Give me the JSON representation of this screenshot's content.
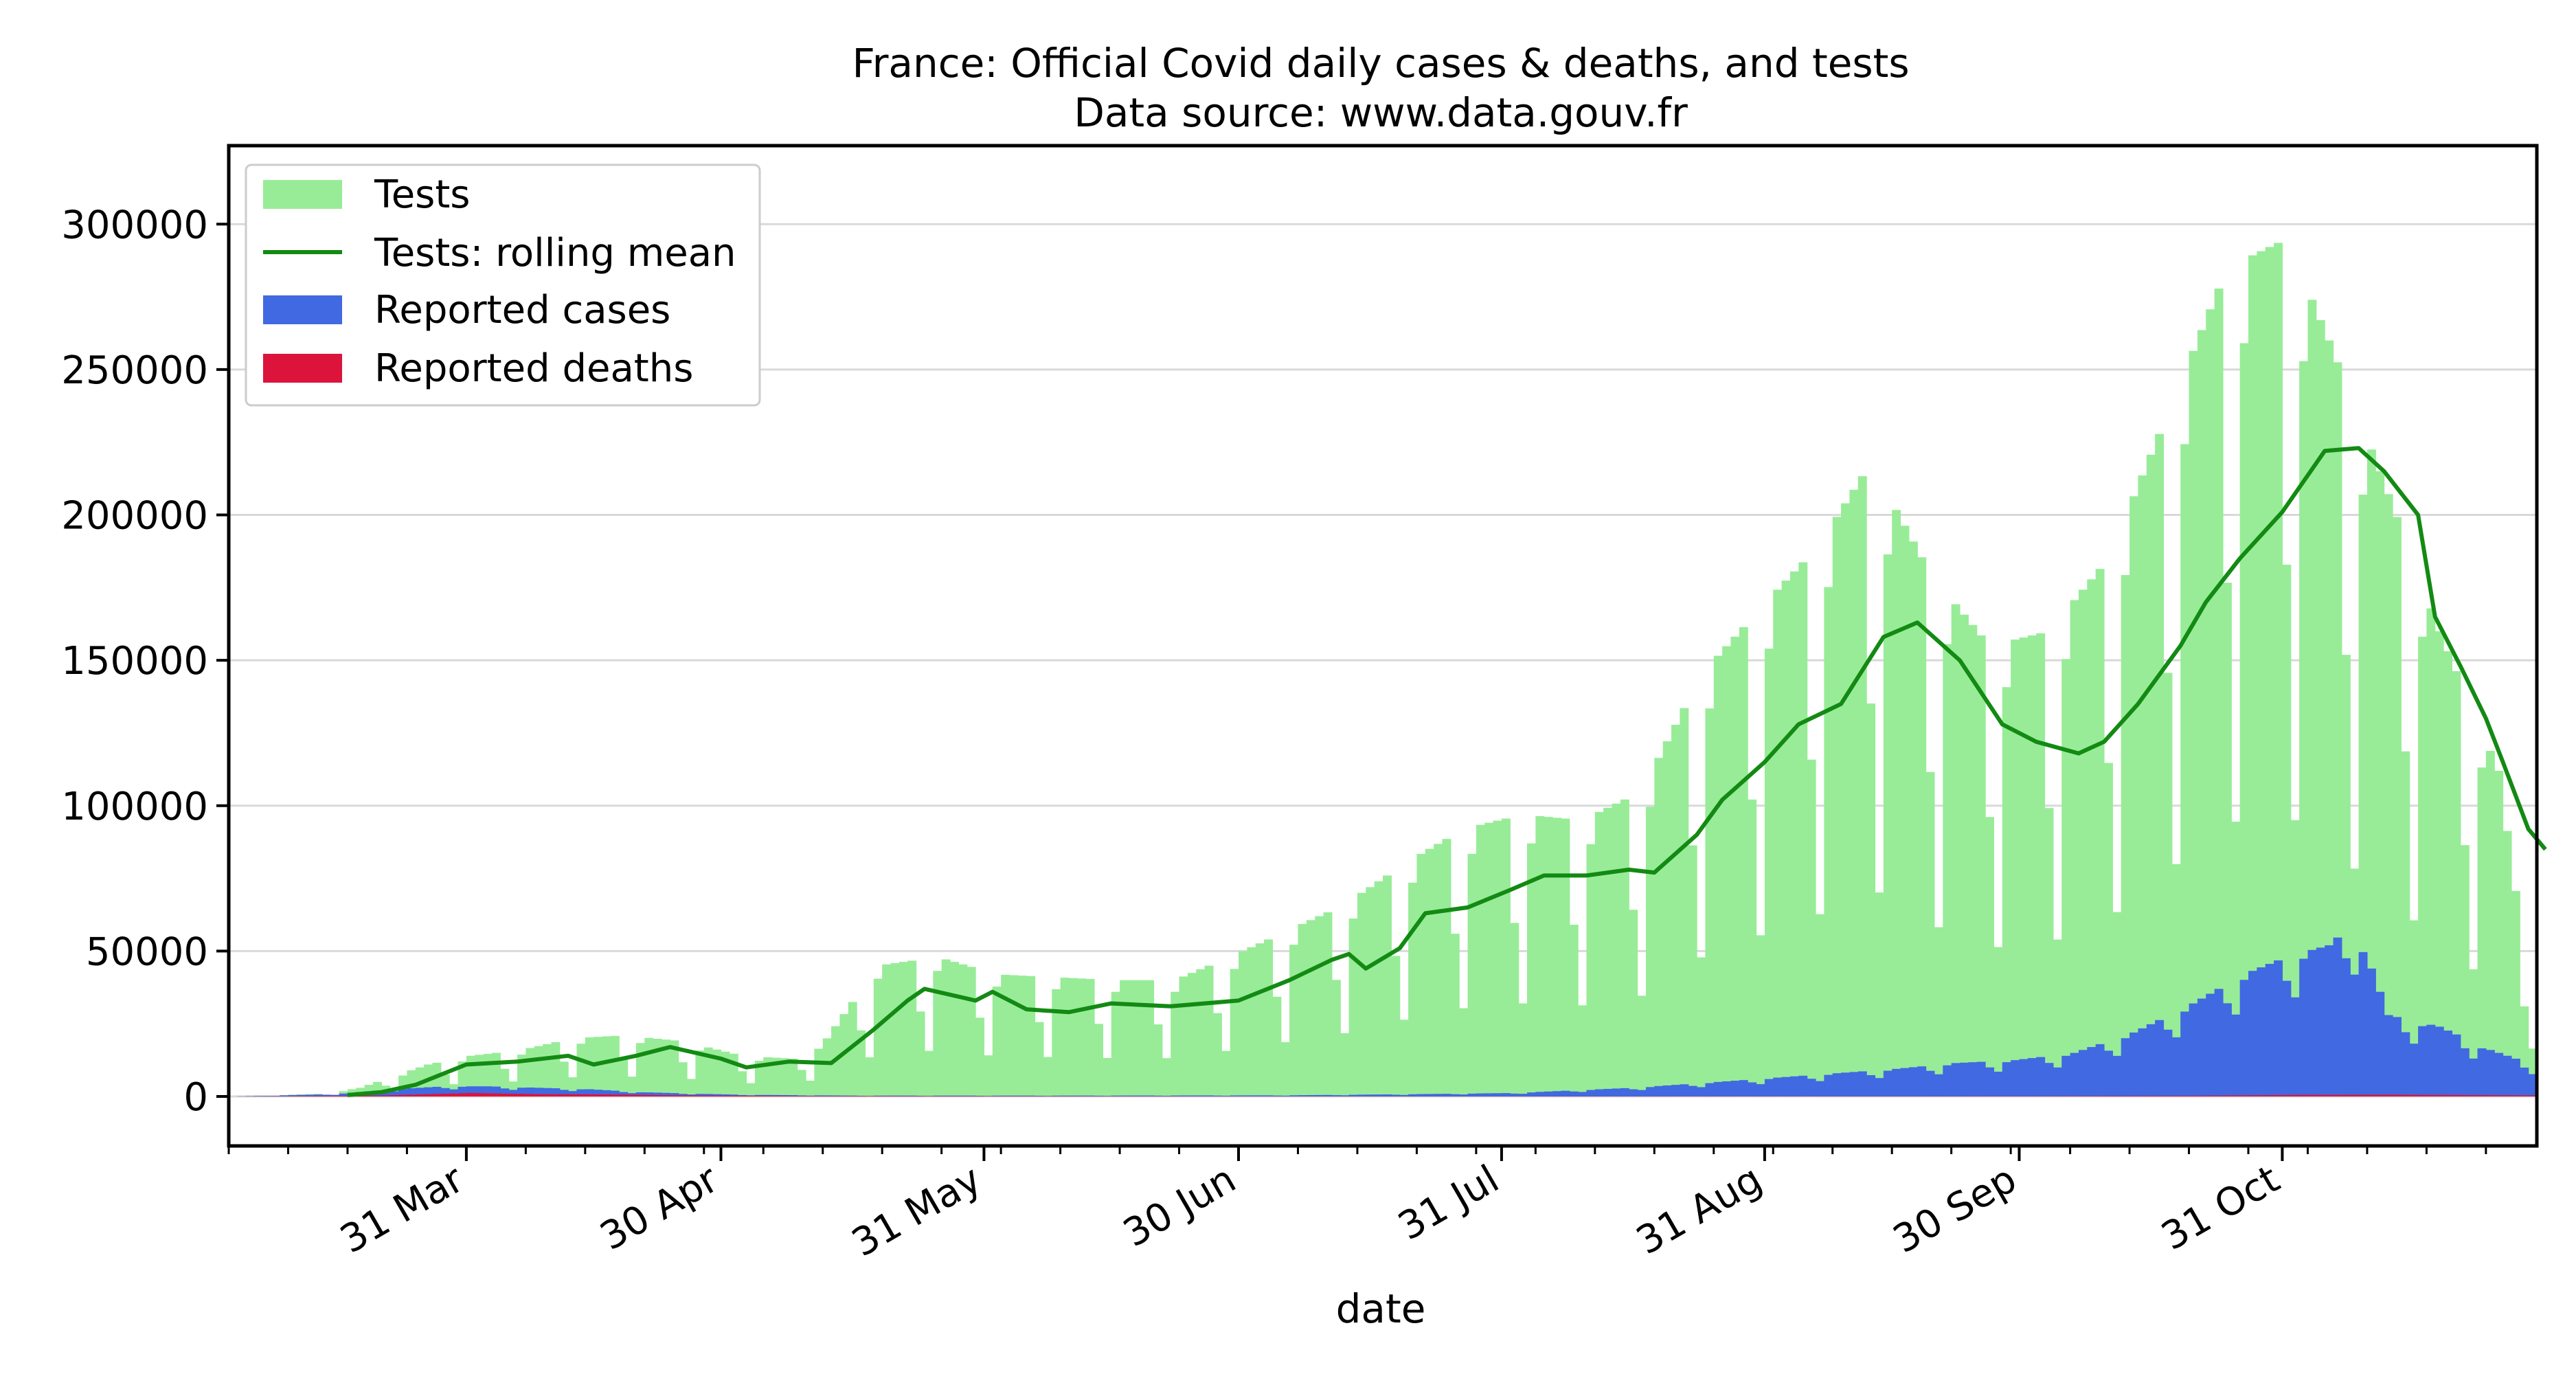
{
  "chart_data": {
    "type": "bar",
    "title": "France: Official Covid daily cases & deaths, and tests",
    "subtitle": "Data source: www.data.gouv.fr",
    "xlabel": "date",
    "ylabel": "",
    "xlim": [
      "2020-03-03",
      "2020-11-30"
    ],
    "ylim": [
      -17000,
      327000
    ],
    "grid": "horizontal",
    "legend_position": "top-left",
    "x_tick_labels": [
      {
        "date": "2020-03-31",
        "label": "31 Mar"
      },
      {
        "date": "2020-04-30",
        "label": "30 Apr"
      },
      {
        "date": "2020-05-31",
        "label": "31 May"
      },
      {
        "date": "2020-06-30",
        "label": "30 Jun"
      },
      {
        "date": "2020-07-31",
        "label": "31 Jul"
      },
      {
        "date": "2020-08-31",
        "label": "31 Aug"
      },
      {
        "date": "2020-09-30",
        "label": "30 Sep"
      },
      {
        "date": "2020-10-31",
        "label": "31 Oct"
      }
    ],
    "y_ticks": [
      0,
      50000,
      100000,
      150000,
      200000,
      250000,
      300000
    ],
    "y_tick_labels": [
      "0",
      "50000",
      "100000",
      "150000",
      "200000",
      "250000",
      "300000"
    ],
    "colors": {
      "tests": "#98ec98",
      "rolling": "#138a13",
      "cases": "#4169e1",
      "deaths": "#dc143c",
      "grid": "#d9d9d9"
    },
    "series": [
      {
        "name": "Tests",
        "kind": "bar",
        "anchors": [
          [
            "2020-03-03",
            0
          ],
          [
            "2020-03-14",
            1000
          ],
          [
            "2020-03-18",
            3000
          ],
          [
            "2020-03-22",
            7000
          ],
          [
            "2020-03-26",
            11000
          ],
          [
            "2020-03-31",
            14000
          ],
          [
            "2020-04-06",
            16000
          ],
          [
            "2020-04-12",
            20000
          ],
          [
            "2020-04-18",
            21000
          ],
          [
            "2020-04-25",
            19000
          ],
          [
            "2020-05-02",
            14000
          ],
          [
            "2020-05-08",
            13000
          ],
          [
            "2020-05-12",
            20000
          ],
          [
            "2020-05-18",
            45000
          ],
          [
            "2020-05-25",
            48000
          ],
          [
            "2020-06-01",
            42000
          ],
          [
            "2020-06-08",
            41000
          ],
          [
            "2020-06-15",
            40000
          ],
          [
            "2020-06-22",
            40000
          ],
          [
            "2020-06-30",
            50000
          ],
          [
            "2020-07-06",
            58000
          ],
          [
            "2020-07-12",
            66000
          ],
          [
            "2020-07-19",
            80000
          ],
          [
            "2020-07-26",
            92000
          ],
          [
            "2020-08-02",
            97000
          ],
          [
            "2020-08-09",
            95000
          ],
          [
            "2020-08-16",
            105000
          ],
          [
            "2020-08-23",
            145000
          ],
          [
            "2020-08-30",
            168000
          ],
          [
            "2020-09-06",
            190000
          ],
          [
            "2020-09-12",
            218000
          ],
          [
            "2020-09-19",
            180000
          ],
          [
            "2020-09-26",
            155000
          ],
          [
            "2020-10-03",
            160000
          ],
          [
            "2020-10-10",
            185000
          ],
          [
            "2020-10-17",
            235000
          ],
          [
            "2020-10-24",
            285000
          ],
          [
            "2020-10-31",
            295000
          ],
          [
            "2020-11-05",
            260000
          ],
          [
            "2020-11-11",
            215000
          ],
          [
            "2020-11-18",
            160000
          ],
          [
            "2020-11-25",
            112000
          ],
          [
            "2020-11-28",
            50000
          ]
        ]
      },
      {
        "name": "Tests: rolling mean",
        "kind": "line",
        "points": [
          [
            "2020-03-17",
            500
          ],
          [
            "2020-03-21",
            1500
          ],
          [
            "2020-03-25",
            4000
          ],
          [
            "2020-03-31",
            11000
          ],
          [
            "2020-04-06",
            12000
          ],
          [
            "2020-04-12",
            14000
          ],
          [
            "2020-04-15",
            11000
          ],
          [
            "2020-04-20",
            14000
          ],
          [
            "2020-04-24",
            17000
          ],
          [
            "2020-04-30",
            13000
          ],
          [
            "2020-05-03",
            10000
          ],
          [
            "2020-05-08",
            12000
          ],
          [
            "2020-05-13",
            11500
          ],
          [
            "2020-05-18",
            23000
          ],
          [
            "2020-05-22",
            33000
          ],
          [
            "2020-05-24",
            37000
          ],
          [
            "2020-05-30",
            33000
          ],
          [
            "2020-06-01",
            36000
          ],
          [
            "2020-06-05",
            30000
          ],
          [
            "2020-06-10",
            29000
          ],
          [
            "2020-06-15",
            32000
          ],
          [
            "2020-06-22",
            31000
          ],
          [
            "2020-06-30",
            33000
          ],
          [
            "2020-07-06",
            40000
          ],
          [
            "2020-07-11",
            47000
          ],
          [
            "2020-07-13",
            49000
          ],
          [
            "2020-07-15",
            44000
          ],
          [
            "2020-07-19",
            51000
          ],
          [
            "2020-07-22",
            63000
          ],
          [
            "2020-07-27",
            65000
          ],
          [
            "2020-08-01",
            71000
          ],
          [
            "2020-08-05",
            76000
          ],
          [
            "2020-08-10",
            76000
          ],
          [
            "2020-08-15",
            78000
          ],
          [
            "2020-08-18",
            77000
          ],
          [
            "2020-08-23",
            90000
          ],
          [
            "2020-08-26",
            102000
          ],
          [
            "2020-08-31",
            115000
          ],
          [
            "2020-09-04",
            128000
          ],
          [
            "2020-09-09",
            135000
          ],
          [
            "2020-09-14",
            158000
          ],
          [
            "2020-09-18",
            163000
          ],
          [
            "2020-09-23",
            150000
          ],
          [
            "2020-09-28",
            128000
          ],
          [
            "2020-10-02",
            122000
          ],
          [
            "2020-10-07",
            118000
          ],
          [
            "2020-10-10",
            122000
          ],
          [
            "2020-10-14",
            135000
          ],
          [
            "2020-10-19",
            155000
          ],
          [
            "2020-10-22",
            170000
          ],
          [
            "2020-10-26",
            185000
          ],
          [
            "2020-10-31",
            201000
          ],
          [
            "2020-11-05",
            222000
          ],
          [
            "2020-11-09",
            223000
          ],
          [
            "2020-11-12",
            215000
          ],
          [
            "2020-11-16",
            200000
          ],
          [
            "2020-11-18",
            165000
          ],
          [
            "2020-11-21",
            148000
          ],
          [
            "2020-11-24",
            130000
          ],
          [
            "2020-11-26",
            115000
          ],
          [
            "2020-11-29",
            92000
          ],
          [
            "2020-12-01",
            85000
          ]
        ]
      },
      {
        "name": "Reported cases",
        "kind": "bar",
        "anchors": [
          [
            "2020-03-03",
            0
          ],
          [
            "2020-03-15",
            800
          ],
          [
            "2020-03-22",
            2500
          ],
          [
            "2020-03-28",
            3500
          ],
          [
            "2020-04-02",
            3500
          ],
          [
            "2020-04-08",
            3000
          ],
          [
            "2020-04-14",
            2500
          ],
          [
            "2020-04-20",
            1500
          ],
          [
            "2020-04-26",
            1000
          ],
          [
            "2020-05-02",
            600
          ],
          [
            "2020-05-15",
            300
          ],
          [
            "2020-06-10",
            300
          ],
          [
            "2020-07-05",
            400
          ],
          [
            "2020-07-20",
            800
          ],
          [
            "2020-08-01",
            1200
          ],
          [
            "2020-08-15",
            3000
          ],
          [
            "2020-08-25",
            5000
          ],
          [
            "2020-09-01",
            6500
          ],
          [
            "2020-09-08",
            8000
          ],
          [
            "2020-09-15",
            9500
          ],
          [
            "2020-09-22",
            11500
          ],
          [
            "2020-09-29",
            12500
          ],
          [
            "2020-10-06",
            15000
          ],
          [
            "2020-10-13",
            22000
          ],
          [
            "2020-10-20",
            32000
          ],
          [
            "2020-10-26",
            42000
          ],
          [
            "2020-10-31",
            48000
          ],
          [
            "2020-11-05",
            52000
          ],
          [
            "2020-11-08",
            60000
          ],
          [
            "2020-11-12",
            28000
          ],
          [
            "2020-11-18",
            24000
          ],
          [
            "2020-11-24",
            16000
          ],
          [
            "2020-11-30",
            10000
          ]
        ]
      },
      {
        "name": "Reported deaths",
        "kind": "bar",
        "anchors": [
          [
            "2020-03-03",
            0
          ],
          [
            "2020-03-20",
            300
          ],
          [
            "2020-03-31",
            1200
          ],
          [
            "2020-04-08",
            800
          ],
          [
            "2020-04-16",
            700
          ],
          [
            "2020-04-25",
            350
          ],
          [
            "2020-05-10",
            150
          ],
          [
            "2020-07-01",
            50
          ],
          [
            "2020-09-01",
            60
          ],
          [
            "2020-10-01",
            100
          ],
          [
            "2020-10-20",
            250
          ],
          [
            "2020-11-02",
            550
          ],
          [
            "2020-11-12",
            600
          ],
          [
            "2020-11-30",
            350
          ]
        ]
      }
    ]
  }
}
